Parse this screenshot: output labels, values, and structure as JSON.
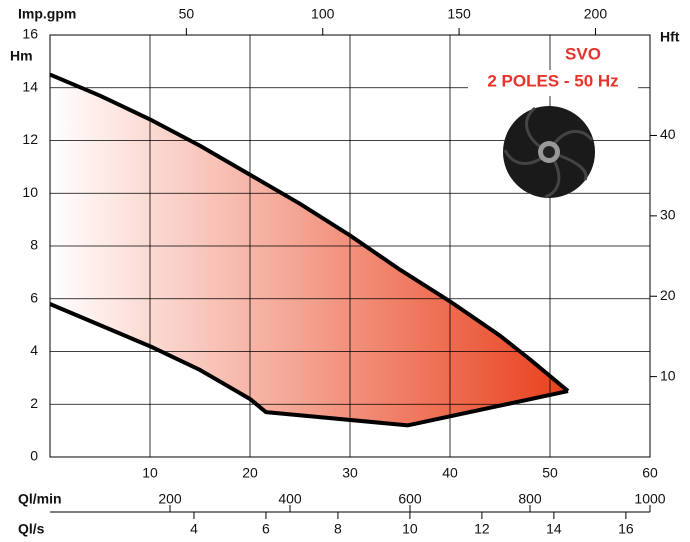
{
  "chart_data": {
    "type": "range",
    "annotations": [
      "SVO",
      "2 POLES - 50 Hz"
    ],
    "ylabel": "Hm",
    "xlim": [
      0,
      60
    ],
    "xticks": [
      10,
      20,
      30,
      40,
      50,
      60
    ],
    "ylim": [
      0,
      16
    ],
    "yticks": [
      0,
      2,
      4,
      6,
      8,
      10,
      12,
      14,
      16
    ],
    "y2label": "Hft",
    "y2lim": [
      0,
      52.5
    ],
    "y2ticks": [
      10,
      20,
      30,
      40
    ],
    "secondary_x_axes": [
      {
        "label": "Imp.gpm",
        "position": "top",
        "lim": [
          0,
          220
        ],
        "ticks": [
          50,
          100,
          150,
          200
        ]
      },
      {
        "label": "Ql/min",
        "position": "bottom1",
        "lim": [
          0,
          1000
        ],
        "ticks": [
          200,
          400,
          600,
          800,
          1000
        ]
      },
      {
        "label": "Ql/s",
        "position": "bottom2",
        "lim": [
          0,
          16.67
        ],
        "ticks": [
          4,
          6,
          8,
          10,
          12,
          14,
          16
        ]
      }
    ],
    "grid": true,
    "fill_color": "#e8401c",
    "series": [
      {
        "color": "#000000",
        "x": [
          0,
          5,
          10,
          15,
          20,
          25,
          30,
          35,
          40,
          45,
          48,
          51.8
        ],
        "values": [
          14.5,
          13.7,
          12.8,
          11.8,
          10.7,
          9.6,
          8.4,
          7.1,
          5.9,
          4.6,
          3.7,
          2.5
        ]
      },
      {
        "color": "#000000",
        "x": [
          0,
          5,
          10,
          15,
          20,
          21.6,
          35.8,
          51.8
        ],
        "values": [
          5.8,
          5.0,
          4.2,
          3.3,
          2.2,
          1.7,
          1.2,
          2.5
        ]
      }
    ]
  }
}
